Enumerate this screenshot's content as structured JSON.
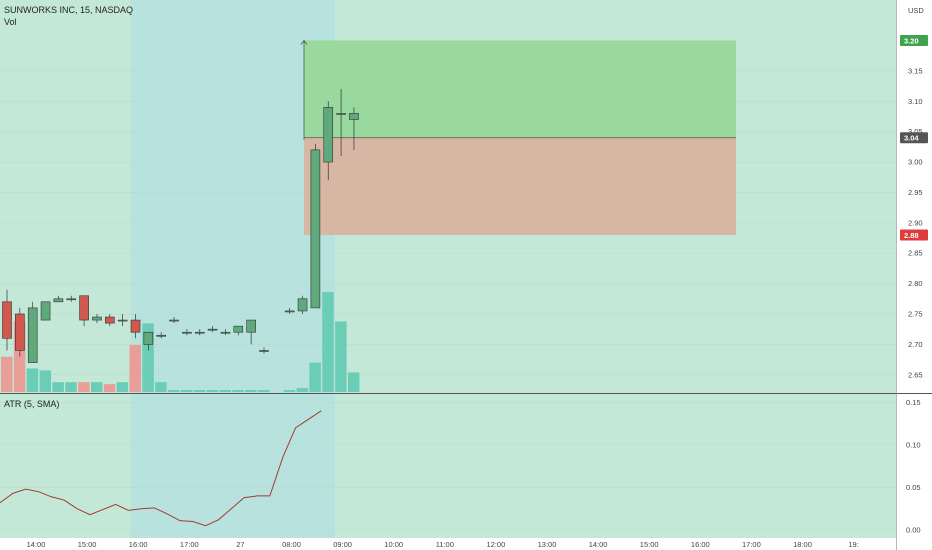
{
  "header": {
    "symbol_line": "SUNWORKS INC, 15, NASDAQ",
    "volume_label": "Vol",
    "currency": "USD"
  },
  "atr": {
    "label": "ATR (5, SMA)"
  },
  "colors": {
    "up": "#5fa97d",
    "down": "#d0584f",
    "vol_up": "#66cbb4",
    "vol_down": "#eb9a93",
    "session_bg": "#c4e8d7",
    "premarket_bg": "#b8e2de",
    "target_zone": "#9ad99e",
    "stop_zone": "#d8b6a4",
    "atr_line": "#a33b2e",
    "badge_price": "#555555",
    "badge_target": "#3fa34d",
    "badge_stop": "#e03b3b"
  },
  "chart_data": [
    {
      "type": "candlestick",
      "title": "SUNWORKS INC, 15, NASDAQ",
      "ylabel": "USD",
      "ylim": [
        2.62,
        3.26
      ],
      "yticks": [
        "3.15",
        "3.10",
        "3.05",
        "3.00",
        "2.95",
        "2.90",
        "2.85",
        "2.80",
        "2.75",
        "2.70",
        "2.65"
      ],
      "xticks": [
        "14:00",
        "15:00",
        "16:00",
        "17:00",
        "27",
        "08:00",
        "09:00",
        "10:00",
        "11:00",
        "12:00",
        "13:00",
        "14:00",
        "15:00",
        "16:00",
        "17:00",
        "18:00",
        "19:"
      ],
      "candles": [
        {
          "o": 2.77,
          "h": 2.79,
          "l": 2.69,
          "c": 2.71,
          "v": 1800
        },
        {
          "o": 2.75,
          "h": 2.76,
          "l": 2.68,
          "c": 2.69,
          "v": 3600
        },
        {
          "o": 2.67,
          "h": 2.77,
          "l": 2.67,
          "c": 2.76,
          "v": 1200
        },
        {
          "o": 2.74,
          "h": 2.77,
          "l": 2.74,
          "c": 2.77,
          "v": 1100
        },
        {
          "o": 2.77,
          "h": 2.78,
          "l": 2.77,
          "c": 2.775,
          "v": 500
        },
        {
          "o": 2.775,
          "h": 2.78,
          "l": 2.77,
          "c": 2.775,
          "v": 500
        },
        {
          "o": 2.78,
          "h": 2.78,
          "l": 2.73,
          "c": 2.74,
          "v": 500
        },
        {
          "o": 2.74,
          "h": 2.75,
          "l": 2.735,
          "c": 2.745,
          "v": 500
        },
        {
          "o": 2.745,
          "h": 2.75,
          "l": 2.73,
          "c": 2.735,
          "v": 400
        },
        {
          "o": 2.74,
          "h": 2.75,
          "l": 2.73,
          "c": 2.74,
          "v": 500
        },
        {
          "o": 2.74,
          "h": 2.75,
          "l": 2.71,
          "c": 2.72,
          "v": 2400
        },
        {
          "o": 2.7,
          "h": 2.72,
          "l": 2.69,
          "c": 2.72,
          "v": 3500
        },
        {
          "o": 2.715,
          "h": 2.72,
          "l": 2.71,
          "c": 2.715,
          "v": 500
        },
        {
          "o": 2.74,
          "h": 2.745,
          "l": 2.735,
          "c": 2.74,
          "v": 100
        },
        {
          "o": 2.72,
          "h": 2.725,
          "l": 2.715,
          "c": 2.72,
          "v": 100
        },
        {
          "o": 2.72,
          "h": 2.725,
          "l": 2.715,
          "c": 2.72,
          "v": 100
        },
        {
          "o": 2.725,
          "h": 2.73,
          "l": 2.72,
          "c": 2.725,
          "v": 100
        },
        {
          "o": 2.72,
          "h": 2.725,
          "l": 2.715,
          "c": 2.72,
          "v": 100
        },
        {
          "o": 2.72,
          "h": 2.73,
          "l": 2.715,
          "c": 2.73,
          "v": 100
        },
        {
          "o": 2.72,
          "h": 2.74,
          "l": 2.7,
          "c": 2.74,
          "v": 100
        },
        {
          "o": 2.69,
          "h": 2.695,
          "l": 2.685,
          "c": 2.69,
          "v": 100
        },
        null,
        {
          "o": 2.755,
          "h": 2.76,
          "l": 2.75,
          "c": 2.755,
          "v": 100
        },
        {
          "o": 2.755,
          "h": 2.78,
          "l": 2.75,
          "c": 2.775,
          "v": 200
        },
        {
          "o": 2.76,
          "h": 3.03,
          "l": 2.76,
          "c": 3.02,
          "v": 1500
        },
        {
          "o": 3.0,
          "h": 3.1,
          "l": 2.97,
          "c": 3.09,
          "v": 5100
        },
        {
          "o": 3.08,
          "h": 3.12,
          "l": 3.01,
          "c": 3.08,
          "v": 3600
        },
        {
          "o": 3.07,
          "h": 3.09,
          "l": 3.02,
          "c": 3.08,
          "v": 1000
        }
      ],
      "position": {
        "entry": 3.04,
        "target": 3.2,
        "stop": 2.88
      },
      "price_labels": {
        "target": "3.20",
        "last": "3.04",
        "stop": "2.88"
      }
    },
    {
      "type": "line",
      "title": "ATR (5, SMA)",
      "ylim": [
        0,
        0.155
      ],
      "yticks": [
        "0.15",
        "0.10",
        "0.05",
        "0.00"
      ],
      "values": [
        0.032,
        0.043,
        0.048,
        0.045,
        0.039,
        0.035,
        0.025,
        0.018,
        0.024,
        0.03,
        0.023,
        0.025,
        0.026,
        0.019,
        0.011,
        0.01,
        0.005,
        0.012,
        0.025,
        0.038,
        0.04,
        0.04,
        0.085,
        0.12,
        0.13,
        0.14
      ]
    }
  ]
}
